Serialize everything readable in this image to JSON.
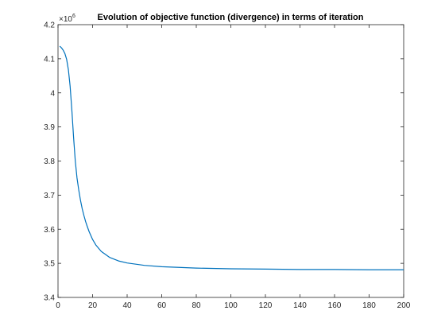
{
  "chart_data": {
    "type": "line",
    "title": "Evolution of objective function (divergence) in terms of iteration",
    "xlabel": "",
    "ylabel": "",
    "xlim": [
      0,
      200
    ],
    "ylim": [
      3.4,
      4.2
    ],
    "y_multiplier_base": "×10",
    "y_multiplier_exp": "6",
    "grid": false,
    "line_color": "#0072bd",
    "xticks": [
      0,
      20,
      40,
      60,
      80,
      100,
      120,
      140,
      160,
      180,
      200
    ],
    "yticks": [
      "3.4",
      "3.5",
      "3.6",
      "3.7",
      "3.8",
      "3.9",
      "4",
      "4.1",
      "4.2"
    ],
    "series": [
      {
        "x": [
          1,
          2,
          3,
          4,
          5,
          6,
          7,
          8,
          9,
          10,
          11,
          12,
          13,
          14,
          15,
          16,
          17,
          18,
          20,
          22,
          25,
          30,
          35,
          40,
          50,
          60,
          70,
          80,
          100,
          120,
          140,
          160,
          180,
          200
        ],
        "y": [
          4.137,
          4.132,
          4.125,
          4.115,
          4.098,
          4.068,
          4.02,
          3.95,
          3.87,
          3.8,
          3.75,
          3.715,
          3.685,
          3.66,
          3.64,
          3.622,
          3.607,
          3.593,
          3.57,
          3.553,
          3.535,
          3.517,
          3.507,
          3.501,
          3.494,
          3.49,
          3.488,
          3.486,
          3.484,
          3.483,
          3.482,
          3.482,
          3.481,
          3.481
        ]
      }
    ]
  }
}
